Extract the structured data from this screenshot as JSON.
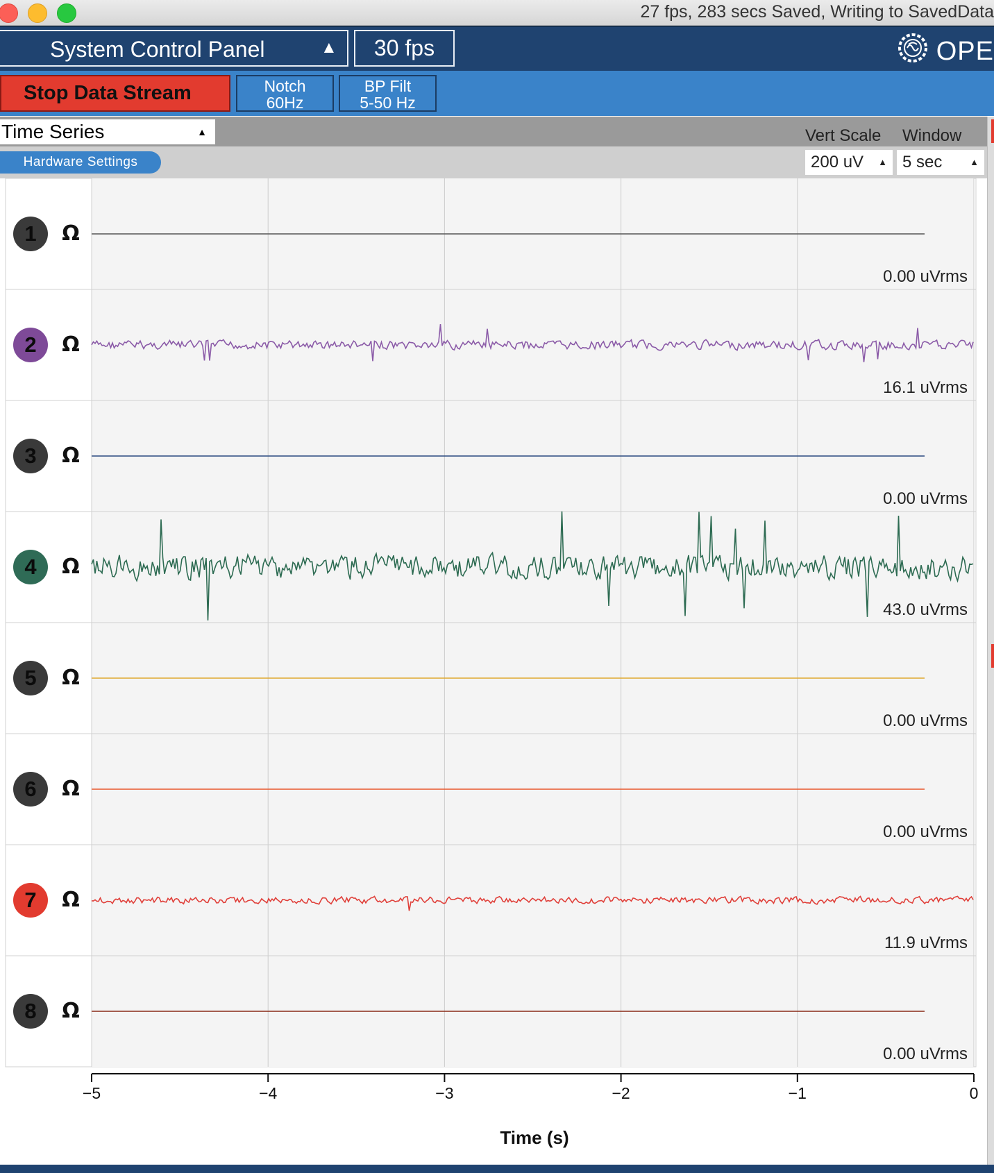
{
  "window": {
    "title": "27 fps, 283 secs Saved, Writing to SavedData"
  },
  "topbar": {
    "panel_label": "System Control Panel",
    "panel_arrow": "▲",
    "fps_value": "30 fps",
    "logo_text": "OPE",
    "logo_icon": "brain-logo-icon"
  },
  "stream": {
    "stop_label": "Stop Data Stream",
    "notch_line1": "Notch",
    "notch_line2": "60Hz",
    "bp_line1": "BP Filt",
    "bp_line2": "5-50 Hz"
  },
  "widget": {
    "name": "Time Series",
    "hardware_settings": "Hardware Settings",
    "vert_scale_label": "Vert Scale",
    "window_label": "Window",
    "vert_scale_value": "200 uV",
    "window_value": "5 sec"
  },
  "channels": [
    {
      "number": "1",
      "ohm": "Ω",
      "rms": "0.00 uVrms",
      "circle_color": "#3a3a3a",
      "trace_color": "#555555",
      "amplitude": 0
    },
    {
      "number": "2",
      "ohm": "Ω",
      "rms": "16.1 uVrms",
      "circle_color": "#7e4a98",
      "trace_color": "#8b5ba8",
      "amplitude": 16.1
    },
    {
      "number": "3",
      "ohm": "Ω",
      "rms": "0.00 uVrms",
      "circle_color": "#3a3a3a",
      "trace_color": "#2b4a80",
      "amplitude": 0
    },
    {
      "number": "4",
      "ohm": "Ω",
      "rms": "43.0 uVrms",
      "circle_color": "#2f6b56",
      "trace_color": "#2d6b52",
      "amplitude": 43.0
    },
    {
      "number": "5",
      "ohm": "Ω",
      "rms": "0.00 uVrms",
      "circle_color": "#3a3a3a",
      "trace_color": "#e0a82e",
      "amplitude": 0
    },
    {
      "number": "6",
      "ohm": "Ω",
      "rms": "0.00 uVrms",
      "circle_color": "#3a3a3a",
      "trace_color": "#e8572b",
      "amplitude": 0
    },
    {
      "number": "7",
      "ohm": "Ω",
      "rms": "11.9 uVrms",
      "circle_color": "#e23b2f",
      "trace_color": "#e0403a",
      "amplitude": 11.9
    },
    {
      "number": "8",
      "ohm": "Ω",
      "rms": "0.00 uVrms",
      "circle_color": "#3a3a3a",
      "trace_color": "#8a2a16",
      "amplitude": 0
    }
  ],
  "xaxis": {
    "title": "Time (s)",
    "ticks": [
      "−5",
      "−4",
      "−3",
      "−2",
      "−1",
      "0"
    ],
    "range": [
      -5,
      0
    ]
  },
  "colors": {
    "topbar_bg": "#1f4370",
    "streambar_bg": "#3a83c9",
    "stop_button": "#e23b2f",
    "plot_bg": "#f4f4f4",
    "grid": "#cccccc"
  }
}
